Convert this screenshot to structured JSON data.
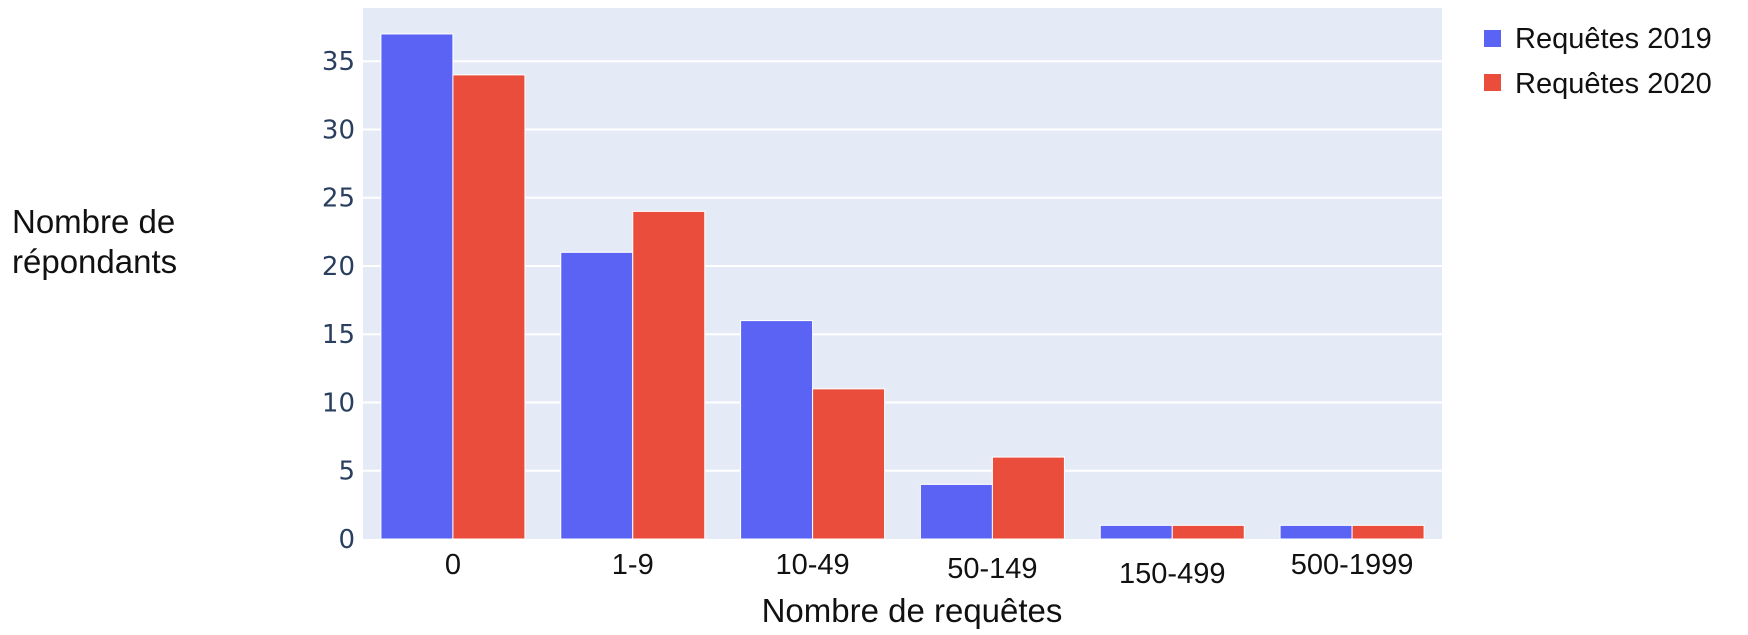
{
  "chart_data": {
    "type": "bar",
    "categories": [
      "0",
      "1-9",
      "10-49",
      "50-149",
      "150-499",
      "500-1999"
    ],
    "series": [
      {
        "name": "Requêtes 2019",
        "color": "#5b63f5",
        "values": [
          37,
          21,
          16,
          4,
          1,
          1
        ]
      },
      {
        "name": "Requêtes 2020",
        "color": "#ea4d3b",
        "values": [
          34,
          24,
          11,
          6,
          1,
          1
        ]
      }
    ],
    "xlabel": "Nombre de requêtes",
    "ylabel_lines": [
      "Nombre de",
      "répondants"
    ],
    "ylim": [
      0,
      38.9
    ],
    "yticks": [
      0,
      5,
      10,
      15,
      20,
      25,
      30,
      35
    ],
    "grid": true,
    "legend_position": "top-right",
    "plot_background": "#e5ebf6"
  }
}
